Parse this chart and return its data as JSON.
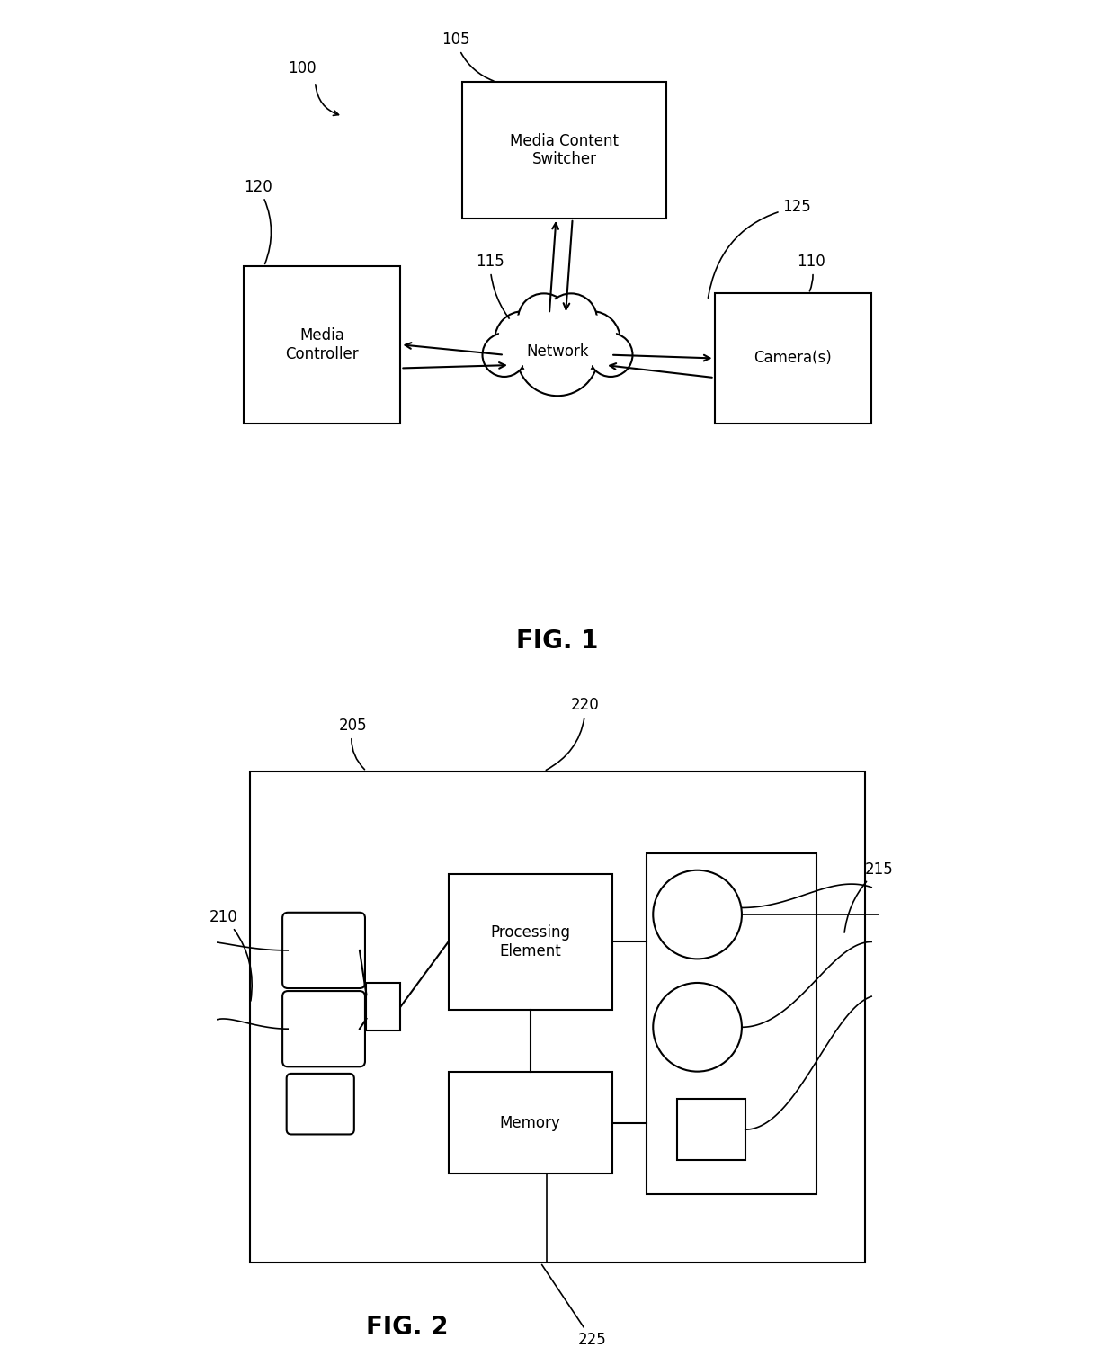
{
  "bg_color": "#ffffff",
  "fig_width": 12.4,
  "fig_height": 15.18,
  "fig1": {
    "title": "FIG. 1",
    "label_100": "100",
    "label_105": "105",
    "label_110": "110",
    "label_115": "115",
    "label_120": "120",
    "label_125": "125",
    "switcher_text": "Media Content\nSwitcher",
    "network_text": "Network",
    "controller_text": "Media\nController",
    "camera_text": "Camera(s)"
  },
  "fig2": {
    "title": "FIG. 2",
    "label_205": "205",
    "label_210": "210",
    "label_215": "215",
    "label_220": "220",
    "label_225": "225",
    "processing_text": "Processing\nElement",
    "memory_text": "Memory"
  }
}
